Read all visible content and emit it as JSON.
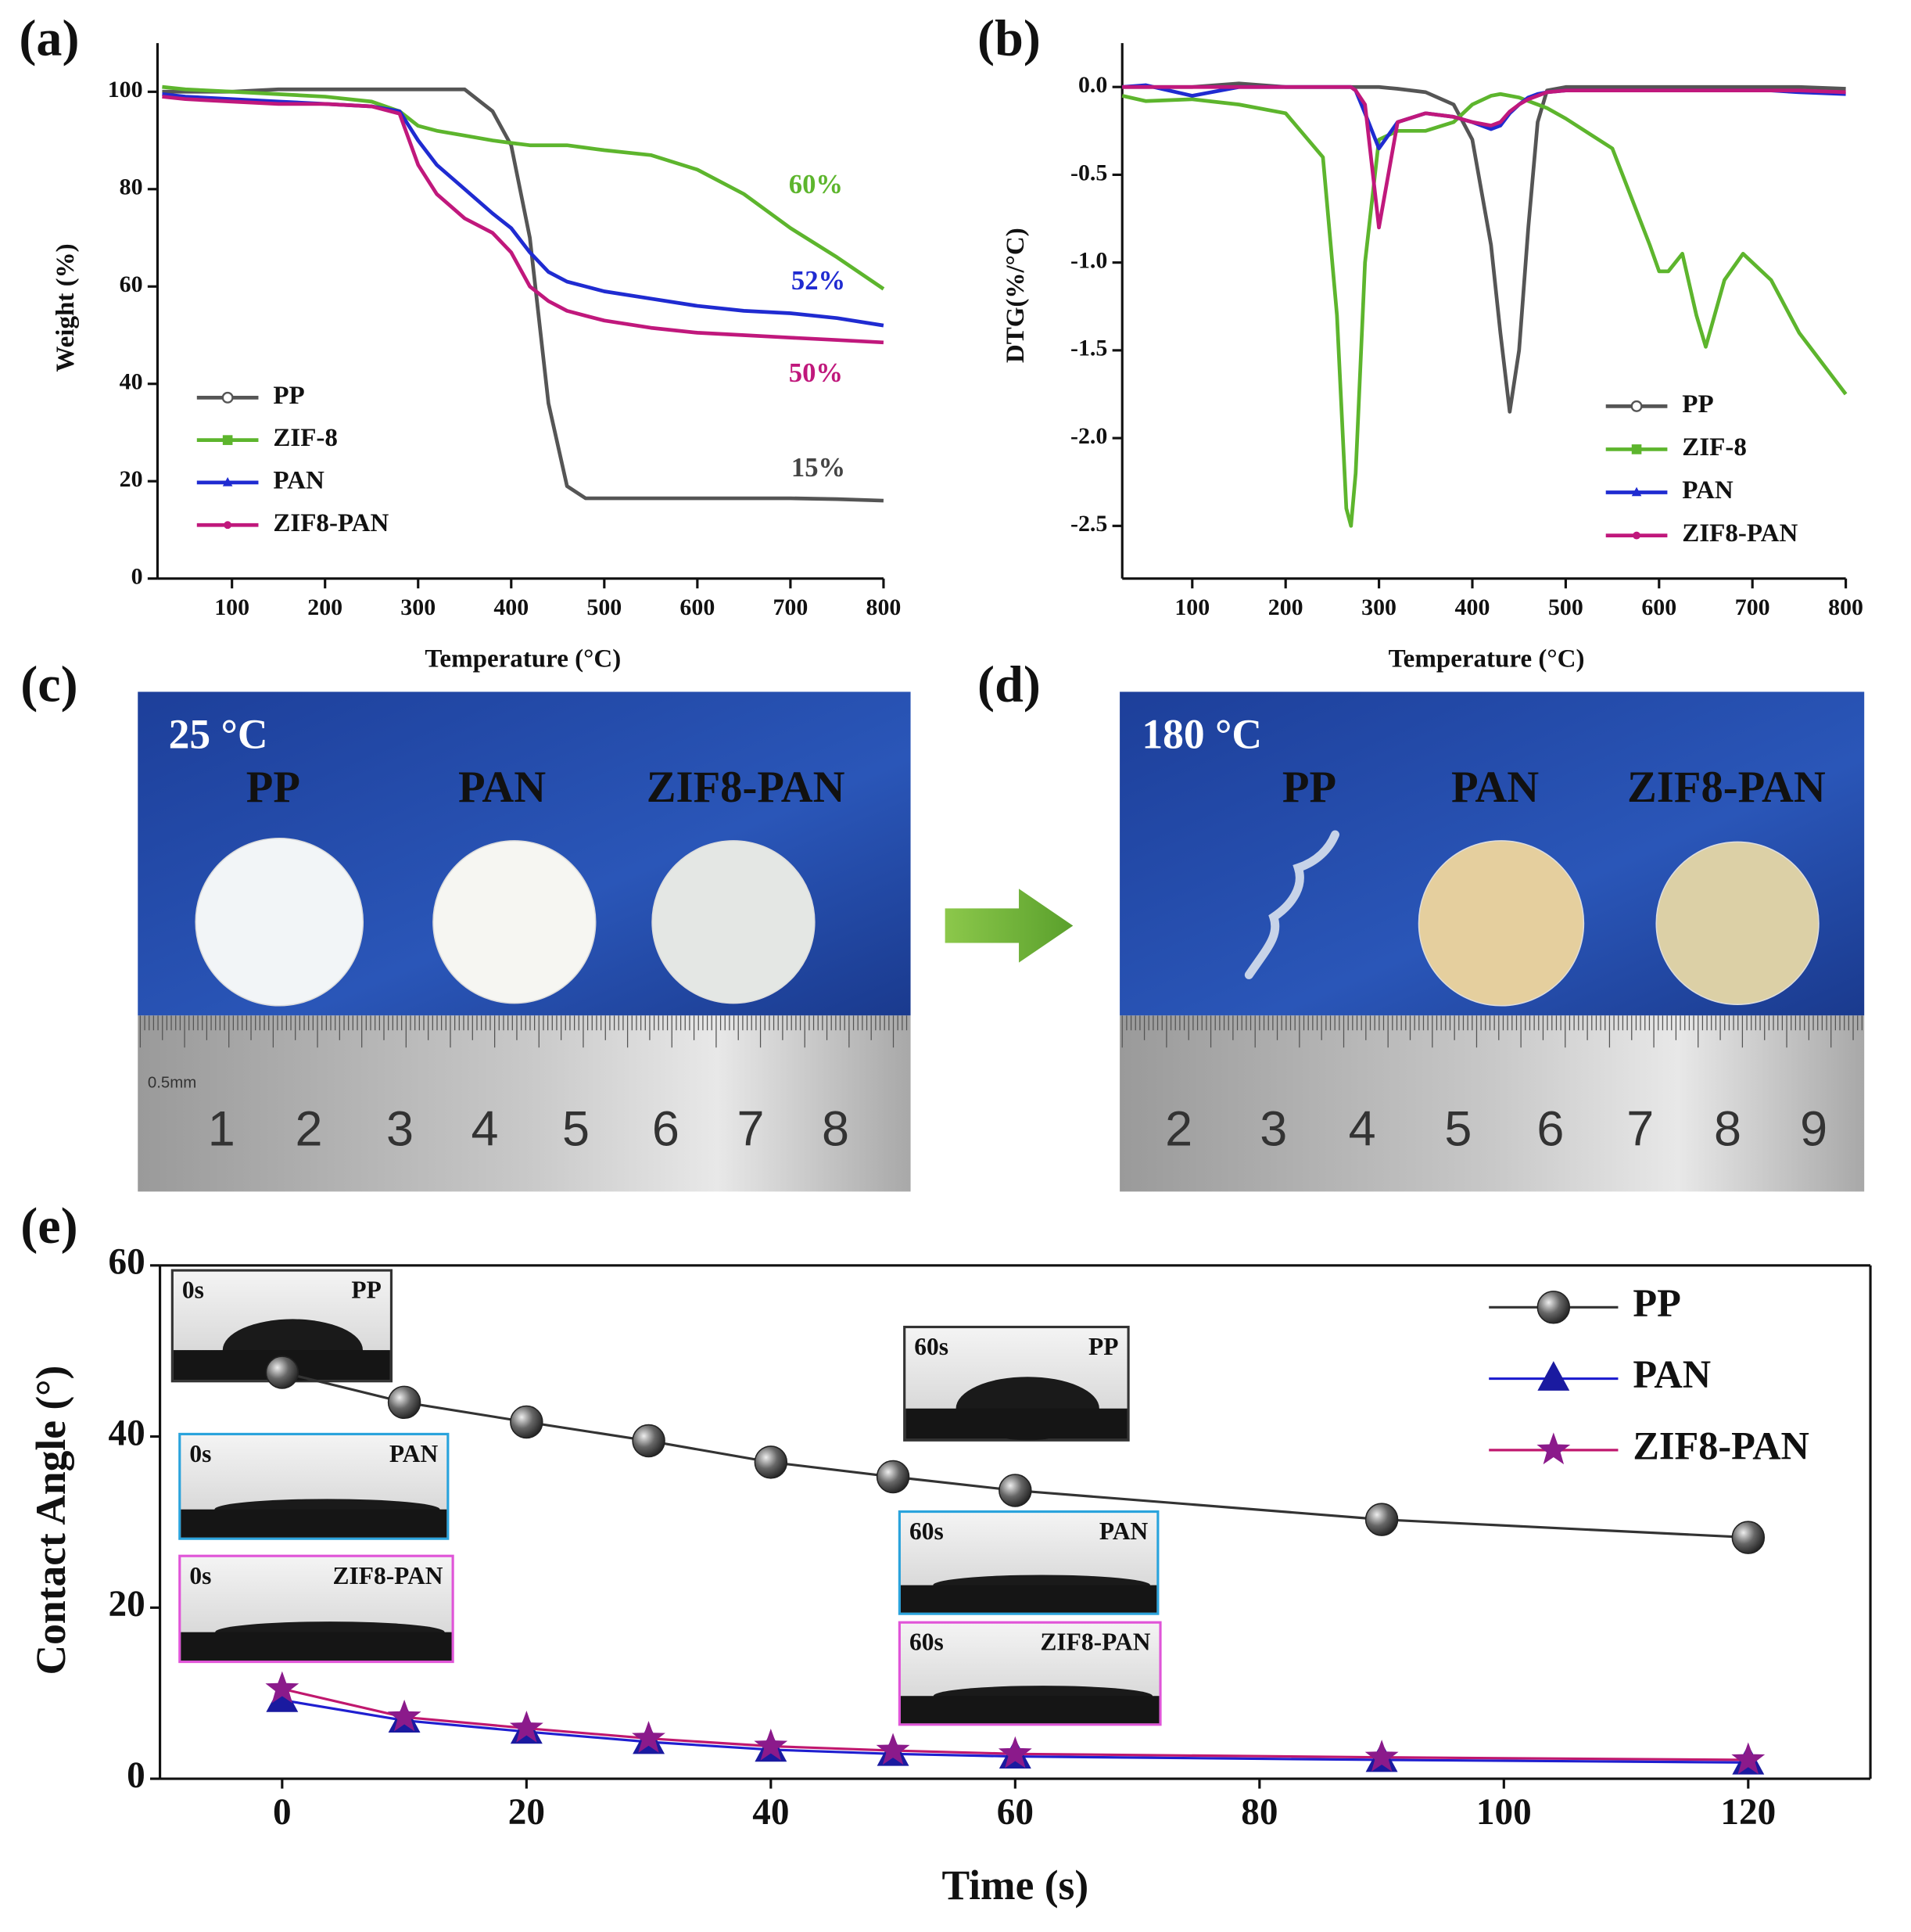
{
  "chart_data": [
    {
      "type": "line",
      "panel_label": "(a)",
      "xlabel": "Temperature (°C)",
      "ylabel": "Weight (%)",
      "x": [
        25,
        50,
        100,
        150,
        200,
        250,
        280,
        300,
        320,
        350,
        380,
        400,
        420,
        440,
        460,
        480,
        500,
        550,
        600,
        650,
        700,
        750,
        800
      ],
      "series": [
        {
          "name": "PP",
          "color": "#555555",
          "marker": "circle",
          "values": [
            100,
            100,
            100,
            100.5,
            100.5,
            100.5,
            100.5,
            100.5,
            100.5,
            100.5,
            96,
            89,
            70,
            36,
            19,
            16.5,
            16.5,
            16.5,
            16.5,
            16.5,
            16.5,
            16.3,
            16
          ]
        },
        {
          "name": "ZIF-8",
          "color": "#5db52d",
          "marker": "square",
          "values": [
            101,
            100.5,
            100,
            99.5,
            99,
            98,
            96,
            93,
            92,
            91,
            90,
            89.5,
            89,
            89,
            89,
            88.5,
            88,
            87,
            84,
            79,
            72,
            66,
            59.5
          ]
        },
        {
          "name": "PAN",
          "color": "#1f2bd1",
          "marker": "triangle",
          "values": [
            99.5,
            99,
            98.5,
            98,
            97.5,
            97,
            96,
            90,
            85,
            80,
            75,
            72,
            67,
            63,
            61,
            60,
            59,
            57.5,
            56,
            55,
            54.5,
            53.5,
            52
          ]
        },
        {
          "name": "ZIF8-PAN",
          "color": "#c0187c",
          "marker": "dot",
          "values": [
            99,
            98.5,
            98,
            97.5,
            97.5,
            97,
            95.5,
            85,
            79,
            74,
            71,
            67,
            60,
            57,
            55,
            54,
            53,
            51.5,
            50.5,
            50,
            49.5,
            49,
            48.5
          ]
        }
      ],
      "annotations": [
        {
          "text": "60%",
          "color": "#5db52d"
        },
        {
          "text": "52%",
          "color": "#1f2bd1"
        },
        {
          "text": "50%",
          "color": "#c0187c"
        },
        {
          "text": "15%",
          "color": "#444444"
        }
      ],
      "xlim": [
        20,
        800
      ],
      "ylim": [
        0,
        110
      ],
      "xticks": [
        100,
        200,
        300,
        400,
        500,
        600,
        700,
        800
      ],
      "yticks": [
        0,
        20,
        40,
        60,
        80,
        100
      ],
      "legend": "lower left"
    },
    {
      "type": "line",
      "panel_label": "(b)",
      "xlabel": "Temperature (°C)",
      "ylabel": "DTG(%/°C)",
      "x": [
        25,
        50,
        100,
        150,
        200,
        240,
        255,
        265,
        270,
        275,
        285,
        300,
        320,
        350,
        380,
        400,
        420,
        430,
        440,
        450,
        460,
        470,
        480,
        500,
        550,
        590,
        600,
        610,
        625,
        640,
        650,
        670,
        690,
        720,
        750,
        800
      ],
      "series": [
        {
          "name": "PP",
          "color": "#555555",
          "marker": "circle",
          "values": [
            0,
            0,
            0,
            0.02,
            0,
            0,
            0,
            0,
            0,
            0,
            0,
            0,
            -0.01,
            -0.03,
            -0.1,
            -0.3,
            -0.9,
            -1.4,
            -1.85,
            -1.5,
            -0.8,
            -0.2,
            -0.02,
            0,
            0,
            0,
            0,
            0,
            0,
            0,
            0,
            0,
            0,
            0,
            0,
            -0.01
          ]
        },
        {
          "name": "ZIF-8",
          "color": "#5db52d",
          "marker": "square",
          "values": [
            -0.05,
            -0.08,
            -0.07,
            -0.1,
            -0.15,
            -0.4,
            -1.3,
            -2.4,
            -2.5,
            -2.2,
            -1.0,
            -0.3,
            -0.25,
            -0.25,
            -0.2,
            -0.1,
            -0.05,
            -0.04,
            -0.05,
            -0.06,
            -0.08,
            -0.1,
            -0.12,
            -0.18,
            -0.35,
            -0.9,
            -1.05,
            -1.05,
            -0.95,
            -1.3,
            -1.48,
            -1.1,
            -0.95,
            -1.1,
            -1.4,
            -1.75
          ]
        },
        {
          "name": "PAN",
          "color": "#1f2bd1",
          "marker": "triangle",
          "values": [
            0,
            0.01,
            -0.05,
            0,
            0,
            0,
            0,
            0,
            0,
            -0.02,
            -0.15,
            -0.35,
            -0.2,
            -0.15,
            -0.17,
            -0.2,
            -0.24,
            -0.22,
            -0.15,
            -0.1,
            -0.06,
            -0.04,
            -0.03,
            -0.02,
            -0.02,
            -0.02,
            -0.02,
            -0.02,
            -0.02,
            -0.02,
            -0.02,
            -0.02,
            -0.02,
            -0.02,
            -0.03,
            -0.04
          ]
        },
        {
          "name": "ZIF8-PAN",
          "color": "#c0187c",
          "marker": "dot",
          "values": [
            0,
            0,
            0,
            0,
            0,
            0,
            0,
            0,
            0,
            -0.02,
            -0.1,
            -0.8,
            -0.2,
            -0.15,
            -0.17,
            -0.2,
            -0.22,
            -0.2,
            -0.14,
            -0.1,
            -0.07,
            -0.05,
            -0.03,
            -0.02,
            -0.02,
            -0.02,
            -0.02,
            -0.02,
            -0.02,
            -0.02,
            -0.02,
            -0.02,
            -0.02,
            -0.02,
            -0.02,
            -0.03
          ]
        }
      ],
      "xlim": [
        25,
        800
      ],
      "ylim": [
        -2.8,
        0.25
      ],
      "xticks": [
        100,
        200,
        300,
        400,
        500,
        600,
        700,
        800
      ],
      "yticks": [
        -2.5,
        {
          "value": -2,
          "label": "-2.0"
        },
        -1.5,
        {
          "value": -1,
          "label": "-1.0"
        },
        -0.5,
        {
          "value": 0,
          "label": "0.0"
        }
      ],
      "legend": "lower right"
    },
    {
      "type": "line",
      "panel_label": "(e)",
      "xlabel": "Time (s)",
      "ylabel": "Contact Angle (°)",
      "x": [
        0,
        10,
        20,
        30,
        40,
        50,
        60,
        90,
        120
      ],
      "series": [
        {
          "name": "PP",
          "color": "#333333",
          "marker": "sphere",
          "marker_color": "#555555",
          "values": [
            47.5,
            44,
            41.7,
            39.5,
            37,
            35.3,
            33.7,
            30.3,
            28.2
          ]
        },
        {
          "name": "PAN",
          "color": "#1f1fd0",
          "marker": "triangle",
          "marker_color": "#1a1aa0",
          "values": [
            9.2,
            6.8,
            5.5,
            4.3,
            3.4,
            2.9,
            2.6,
            2.2,
            1.9
          ]
        },
        {
          "name": "ZIF8-PAN",
          "color": "#c0186e",
          "marker": "star",
          "marker_color": "#8b1a8b",
          "values": [
            10.5,
            7.2,
            5.9,
            4.7,
            3.8,
            3.3,
            2.9,
            2.5,
            2.2
          ]
        }
      ],
      "insets": [
        {
          "time": "0s",
          "sample": "PP"
        },
        {
          "time": "0s",
          "sample": "PAN"
        },
        {
          "time": "0s",
          "sample": "ZIF8-PAN"
        },
        {
          "time": "60s",
          "sample": "PP"
        },
        {
          "time": "60s",
          "sample": "PAN"
        },
        {
          "time": "60s",
          "sample": "ZIF8-PAN"
        }
      ],
      "xlim": [
        -10,
        130
      ],
      "ylim": [
        0,
        60
      ],
      "xticks": [
        0,
        20,
        40,
        60,
        80,
        100,
        120
      ],
      "yticks": [
        0,
        20,
        40,
        60
      ],
      "legend": "upper right"
    }
  ],
  "photos": [
    {
      "panel_label": "(c)",
      "temperature": "25 °C",
      "samples": [
        "PP",
        "PAN",
        "ZIF8-PAN"
      ],
      "ruler_unit": "0.5mm",
      "ruler": [
        "1",
        "2",
        "3",
        "4",
        "5",
        "6",
        "7",
        "8"
      ]
    },
    {
      "panel_label": "(d)",
      "temperature": "180 °C",
      "samples": [
        "PP",
        "PAN",
        "ZIF8-PAN"
      ],
      "ruler": [
        "2",
        "3",
        "4",
        "5",
        "6",
        "7",
        "8",
        "9"
      ]
    }
  ]
}
